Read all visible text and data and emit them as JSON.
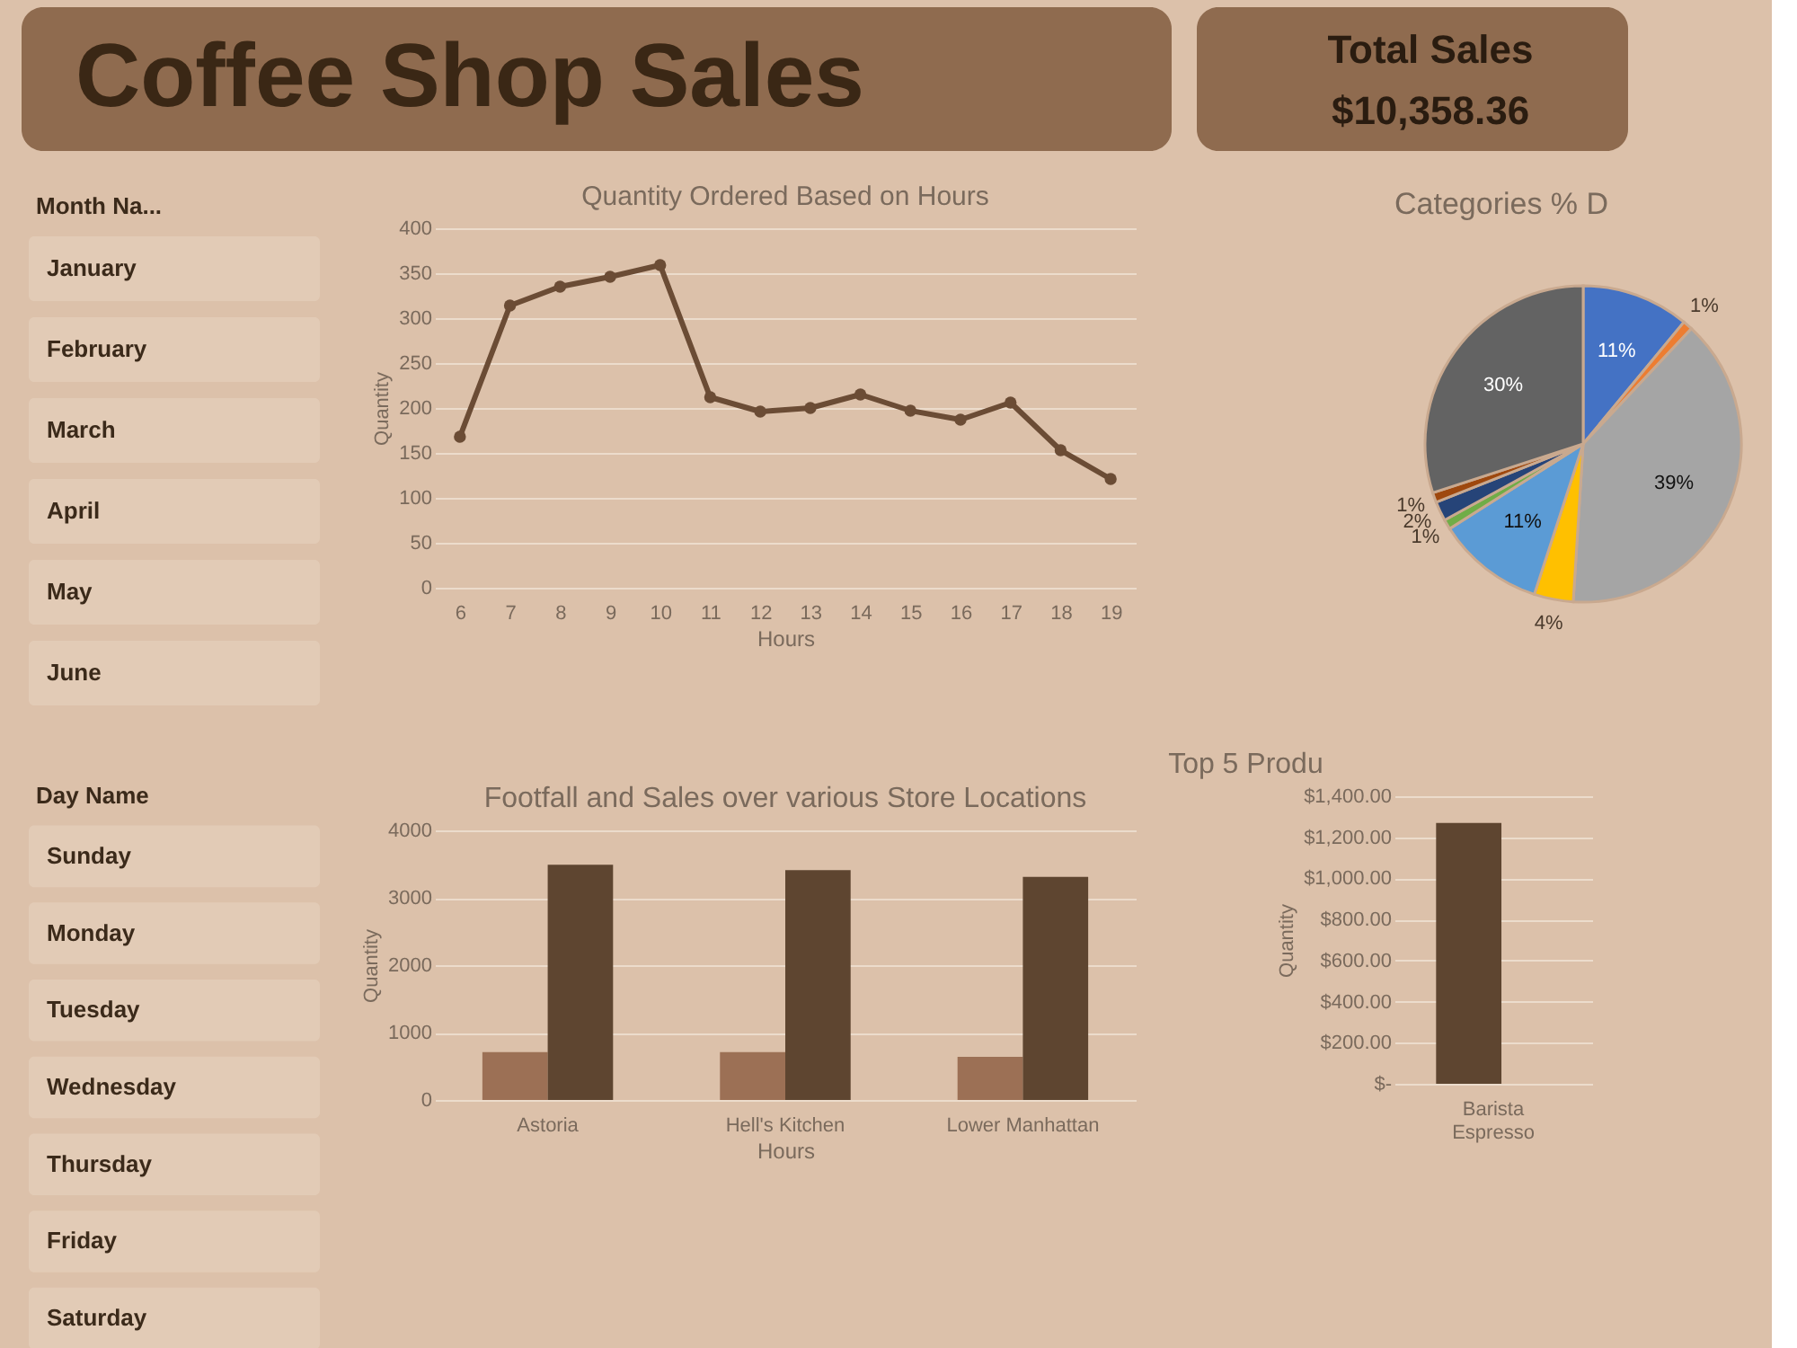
{
  "chart_data": [
    {
      "type": "other",
      "title": "Coffee Shop Sales"
    },
    {
      "type": "other",
      "title": "Total Sales",
      "annotations": [
        "$10,358.36"
      ]
    },
    {
      "type": "other",
      "title": "Month Na...",
      "categories": [
        "January",
        "February",
        "March",
        "April",
        "May",
        "June"
      ]
    },
    {
      "type": "line",
      "title": "Quantity Ordered Based on Hours",
      "xlabel": "Hours",
      "ylabel": "Quantity",
      "categories": [
        "6",
        "7",
        "8",
        "9",
        "10",
        "11",
        "12",
        "13",
        "14",
        "15",
        "16",
        "17",
        "18",
        "19"
      ],
      "series": [
        {
          "color": "#6b4c35",
          "values": [
            168,
            314,
            335,
            346,
            359,
            212,
            196,
            200,
            215,
            197,
            187,
            206,
            153,
            121
          ]
        }
      ],
      "ylim": [
        0,
        400
      ],
      "yticks": [
        0,
        50,
        100,
        150,
        200,
        250,
        300,
        350,
        400
      ],
      "grid": "y",
      "marker": "circle",
      "line_style": "solid",
      "legend": false
    },
    {
      "type": "pie",
      "title": "Categories % D",
      "categories": [
        null,
        null,
        null,
        null,
        null,
        null,
        null,
        null,
        null
      ],
      "values": [
        11,
        1,
        39,
        4,
        11,
        1,
        2,
        1,
        30
      ],
      "colors": [
        "#4472c4",
        "#ed7d31",
        "#a5a5a5",
        "#ffc000",
        "#5b9bd5",
        "#70ad47",
        "#264478",
        "#9e480e",
        "#636363"
      ],
      "value_labels": [
        "11%",
        "1%",
        "39%",
        "4%",
        "11%",
        "1%",
        "2%",
        "1%",
        "30%"
      ],
      "legend": false
    },
    {
      "type": "other",
      "title": "Day Name",
      "categories": [
        "Sunday",
        "Monday",
        "Tuesday",
        "Wednesday",
        "Thursday",
        "Friday",
        "Saturday"
      ]
    },
    {
      "type": "bar",
      "title": "Footfall and Sales over various Store Locations",
      "xlabel": "Hours",
      "ylabel": "Quantity",
      "categories": [
        "Astoria",
        "Hell's Kitchen",
        "Lower Manhattan"
      ],
      "series": [
        {
          "color": "#9c7055",
          "values": [
            710,
            710,
            640
          ]
        },
        {
          "color": "#5e4530",
          "values": [
            3490,
            3410,
            3310
          ]
        }
      ],
      "ylim": [
        0,
        4000
      ],
      "yticks": [
        0,
        1000,
        2000,
        3000,
        4000
      ],
      "grid": "y",
      "legend": false
    },
    {
      "type": "bar",
      "title": "Top 5 Produ",
      "ylabel": "Quantity",
      "categories": [
        "Barista Espresso"
      ],
      "series": [
        {
          "color": "#5e4530",
          "values": [
            1270
          ]
        }
      ],
      "ylim": [
        0,
        1400
      ],
      "yticks": [
        {
          "value": 0,
          "label": "$-"
        },
        {
          "value": 200,
          "label": "$200.00"
        },
        {
          "value": 400,
          "label": "$400.00"
        },
        {
          "value": 600,
          "label": "$600.00"
        },
        {
          "value": 800,
          "label": "$800.00"
        },
        {
          "value": 1000,
          "label": "$1,000.00"
        },
        {
          "value": 1200,
          "label": "$1,200.00"
        },
        {
          "value": 1400,
          "label": "$1,400.00"
        }
      ],
      "grid": "y",
      "legend": false
    }
  ]
}
